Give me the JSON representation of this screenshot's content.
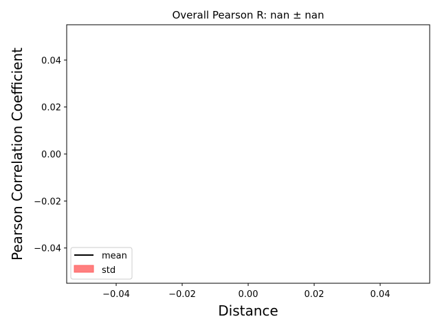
{
  "chart_data": {
    "type": "line",
    "title": "Overall Pearson R: nan ± nan",
    "xlabel": "Distance",
    "ylabel": "Pearson Correlation Coefficient",
    "xlim": [
      -0.055,
      0.055
    ],
    "ylim": [
      -0.055,
      0.055
    ],
    "x_ticks": [
      -0.04,
      -0.02,
      0.0,
      0.02,
      0.04
    ],
    "x_tick_labels": [
      "−0.04",
      "−0.02",
      "0.00",
      "0.02",
      "0.04"
    ],
    "y_ticks": [
      0.04,
      0.02,
      0.0,
      -0.02,
      -0.04
    ],
    "y_tick_labels": [
      "0.04",
      "0.02",
      "0.00",
      "−0.02",
      "−0.04"
    ],
    "series": [
      {
        "name": "mean",
        "kind": "line",
        "color": "#000000",
        "x": [],
        "y": []
      },
      {
        "name": "std",
        "kind": "band",
        "color": "#ff7f7f",
        "x": [],
        "y_low": [],
        "y_high": []
      }
    ],
    "grid": false,
    "legend_position": "lower-left"
  }
}
